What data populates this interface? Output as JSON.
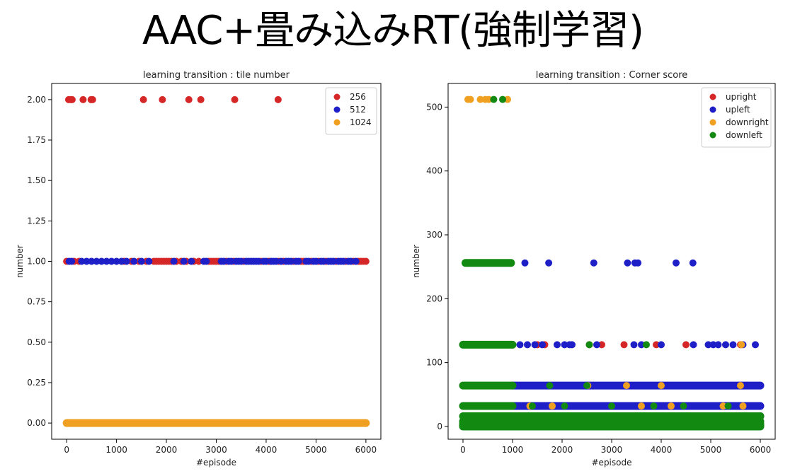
{
  "slide": {
    "title": "AAC+畳み込みRT(強制学習)"
  },
  "chart_data": [
    {
      "type": "scatter",
      "title": "learning transition : tile number",
      "xlabel": "#episode",
      "ylabel": "number",
      "xlim": [
        -300,
        6300
      ],
      "ylim": [
        -0.1,
        2.1
      ],
      "xticks": [
        0,
        1000,
        2000,
        3000,
        4000,
        5000,
        6000
      ],
      "xtick_labels": [
        "0",
        "1000",
        "2000",
        "3000",
        "4000",
        "5000",
        "6000"
      ],
      "yticks": [
        0.0,
        0.25,
        0.5,
        0.75,
        1.0,
        1.25,
        1.5,
        1.75,
        2.0
      ],
      "ytick_labels": [
        "0.00",
        "0.25",
        "0.50",
        "0.75",
        "1.00",
        "1.25",
        "1.50",
        "1.75",
        "2.00"
      ],
      "grid": false,
      "legend_position": "top-right",
      "series": [
        {
          "name": "256",
          "color": "#d62728",
          "points": [
            [
              40,
              2
            ],
            [
              80,
              2
            ],
            [
              110,
              2
            ],
            [
              330,
              2
            ],
            [
              490,
              2
            ],
            [
              520,
              2
            ],
            [
              1540,
              2
            ],
            [
              1920,
              2
            ],
            [
              2450,
              2
            ],
            [
              2690,
              2
            ],
            [
              3370,
              2
            ],
            [
              4240,
              2
            ],
            [
              0,
              1
            ],
            [
              150,
              1
            ],
            [
              250,
              1
            ],
            [
              1150,
              1
            ],
            [
              1300,
              1
            ],
            [
              1450,
              1
            ],
            [
              1600,
              1
            ],
            [
              1750,
              1
            ],
            [
              1800,
              1
            ],
            [
              1850,
              1
            ],
            [
              1900,
              1
            ],
            [
              1950,
              1
            ],
            [
              2000,
              1
            ],
            [
              2050,
              1
            ],
            [
              2100,
              1
            ],
            [
              2200,
              1
            ],
            [
              2300,
              1
            ],
            [
              2400,
              1
            ],
            [
              2550,
              1
            ],
            [
              2650,
              1
            ],
            [
              2850,
              1
            ],
            [
              2900,
              1
            ],
            [
              2950,
              1
            ],
            [
              3000,
              1
            ],
            [
              3050,
              1
            ],
            [
              3200,
              1
            ],
            [
              3350,
              1
            ],
            [
              3550,
              1
            ],
            [
              3900,
              1
            ],
            [
              4050,
              1
            ],
            [
              4250,
              1
            ],
            [
              4350,
              1
            ],
            [
              4550,
              1
            ],
            [
              4700,
              1
            ],
            [
              4750,
              1
            ],
            [
              4900,
              1
            ],
            [
              5050,
              1
            ],
            [
              5200,
              1
            ],
            [
              5400,
              1
            ],
            [
              5600,
              1
            ],
            [
              5750,
              1
            ],
            [
              5850,
              1
            ],
            [
              5900,
              1
            ],
            [
              5950,
              1
            ],
            [
              6000,
              1
            ]
          ]
        },
        {
          "name": "512",
          "color": "#1f1fc8",
          "points": [
            [
              50,
              1
            ],
            [
              100,
              1
            ],
            [
              300,
              1
            ],
            [
              400,
              1
            ],
            [
              500,
              1
            ],
            [
              600,
              1
            ],
            [
              700,
              1
            ],
            [
              800,
              1
            ],
            [
              900,
              1
            ],
            [
              1000,
              1
            ],
            [
              1100,
              1
            ],
            [
              1200,
              1
            ],
            [
              1350,
              1
            ],
            [
              1500,
              1
            ],
            [
              1650,
              1
            ],
            [
              2150,
              1
            ],
            [
              2350,
              1
            ],
            [
              2500,
              1
            ],
            [
              2750,
              1
            ],
            [
              2800,
              1
            ],
            [
              3100,
              1
            ],
            [
              3150,
              1
            ],
            [
              3250,
              1
            ],
            [
              3300,
              1
            ],
            [
              3400,
              1
            ],
            [
              3450,
              1
            ],
            [
              3500,
              1
            ],
            [
              3600,
              1
            ],
            [
              3650,
              1
            ],
            [
              3700,
              1
            ],
            [
              3750,
              1
            ],
            [
              3800,
              1
            ],
            [
              3850,
              1
            ],
            [
              3950,
              1
            ],
            [
              4000,
              1
            ],
            [
              4100,
              1
            ],
            [
              4150,
              1
            ],
            [
              4200,
              1
            ],
            [
              4300,
              1
            ],
            [
              4400,
              1
            ],
            [
              4450,
              1
            ],
            [
              4500,
              1
            ],
            [
              4600,
              1
            ],
            [
              4650,
              1
            ],
            [
              4800,
              1
            ],
            [
              4850,
              1
            ],
            [
              4950,
              1
            ],
            [
              5000,
              1
            ],
            [
              5100,
              1
            ],
            [
              5150,
              1
            ],
            [
              5250,
              1
            ],
            [
              5300,
              1
            ],
            [
              5350,
              1
            ],
            [
              5450,
              1
            ],
            [
              5500,
              1
            ],
            [
              5550,
              1
            ],
            [
              5650,
              1
            ],
            [
              5700,
              1
            ],
            [
              5800,
              1
            ]
          ]
        },
        {
          "name": "1024",
          "color": "#f0a020",
          "points": [
            [
              0,
              0
            ],
            [
              6000,
              0
            ]
          ],
          "continuous": true
        }
      ]
    },
    {
      "type": "scatter",
      "title": "learning transition : Corner score",
      "xlabel": "#episode",
      "ylabel": "number",
      "xlim": [
        -300,
        6300
      ],
      "ylim": [
        -20,
        537
      ],
      "xticks": [
        0,
        1000,
        2000,
        3000,
        4000,
        5000,
        6000
      ],
      "xtick_labels": [
        "0",
        "1000",
        "2000",
        "3000",
        "4000",
        "5000",
        "6000"
      ],
      "yticks": [
        0,
        100,
        200,
        300,
        400,
        500
      ],
      "ytick_labels": [
        "0",
        "100",
        "200",
        "300",
        "400",
        "500"
      ],
      "grid": false,
      "legend_position": "top-right",
      "series": [
        {
          "name": "upright",
          "color": "#d62728",
          "points": [
            [
              0,
              64
            ],
            [
              1050,
              64
            ],
            [
              1500,
              128
            ],
            [
              1650,
              128
            ],
            [
              2550,
              128
            ],
            [
              2800,
              128
            ],
            [
              3250,
              128
            ],
            [
              3900,
              128
            ],
            [
              4500,
              128
            ],
            [
              5600,
              128
            ],
            [
              6000,
              64
            ],
            [
              100,
              4
            ],
            [
              500,
              16
            ],
            [
              1200,
              8
            ],
            [
              2300,
              16
            ],
            [
              3400,
              4
            ],
            [
              4400,
              8
            ],
            [
              5500,
              16
            ],
            [
              6000,
              32
            ]
          ]
        },
        {
          "name": "upleft",
          "color": "#1f1fc8",
          "points": [
            [
              950,
              256
            ],
            [
              1250,
              256
            ],
            [
              1730,
              256
            ],
            [
              2640,
              256
            ],
            [
              3320,
              256
            ],
            [
              3470,
              256
            ],
            [
              3530,
              256
            ],
            [
              4300,
              256
            ],
            [
              4640,
              256
            ],
            [
              1150,
              128
            ],
            [
              1300,
              128
            ],
            [
              1450,
              128
            ],
            [
              1600,
              128
            ],
            [
              1900,
              128
            ],
            [
              2050,
              128
            ],
            [
              2150,
              128
            ],
            [
              2200,
              128
            ],
            [
              2700,
              128
            ],
            [
              3450,
              128
            ],
            [
              3600,
              128
            ],
            [
              4000,
              128
            ],
            [
              4650,
              128
            ],
            [
              4950,
              128
            ],
            [
              5050,
              128
            ],
            [
              5150,
              128
            ],
            [
              5300,
              128
            ],
            [
              5450,
              128
            ],
            [
              5650,
              128
            ],
            [
              5900,
              128
            ],
            [
              0,
              32
            ],
            [
              6000,
              32
            ],
            [
              1100,
              64
            ],
            [
              5950,
              64
            ],
            [
              1500,
              0
            ],
            [
              4500,
              0
            ]
          ],
          "bands": [
            [
              1000,
              6000,
              64
            ],
            [
              950,
              6000,
              32
            ],
            [
              950,
              6000,
              16
            ]
          ]
        },
        {
          "name": "downright",
          "color": "#f0a020",
          "points": [
            [
              100,
              512
            ],
            [
              150,
              512
            ],
            [
              350,
              512
            ],
            [
              450,
              512
            ],
            [
              520,
              512
            ],
            [
              900,
              512
            ],
            [
              5620,
              128
            ],
            [
              2520,
              64
            ],
            [
              3300,
              64
            ],
            [
              4000,
              64
            ],
            [
              5600,
              64
            ],
            [
              800,
              32
            ],
            [
              1350,
              32
            ],
            [
              1800,
              32
            ],
            [
              3600,
              32
            ],
            [
              4200,
              32
            ],
            [
              5250,
              32
            ],
            [
              5650,
              32
            ],
            [
              700,
              16
            ],
            [
              1150,
              16
            ],
            [
              1700,
              16
            ],
            [
              1900,
              16
            ],
            [
              2500,
              16
            ],
            [
              3450,
              16
            ],
            [
              4250,
              16
            ],
            [
              4700,
              16
            ],
            [
              5550,
              16
            ],
            [
              5950,
              16
            ]
          ]
        },
        {
          "name": "downleft",
          "color": "#128a12",
          "points": [
            [
              620,
              512
            ],
            [
              800,
              512
            ],
            [
              720,
              256
            ],
            [
              560,
              256
            ],
            [
              2550,
              128
            ],
            [
              3700,
              128
            ],
            [
              1750,
              64
            ],
            [
              2500,
              64
            ],
            [
              1400,
              32
            ],
            [
              2050,
              32
            ],
            [
              3000,
              32
            ],
            [
              3850,
              32
            ],
            [
              4450,
              32
            ],
            [
              5350,
              32
            ],
            [
              2900,
              16
            ],
            [
              3750,
              16
            ]
          ],
          "bands": [
            [
              50,
              970,
              256
            ],
            [
              0,
              1000,
              128
            ],
            [
              0,
              1000,
              64
            ],
            [
              0,
              1000,
              32
            ],
            [
              0,
              6000,
              16
            ],
            [
              0,
              6000,
              8
            ],
            [
              0,
              6000,
              4
            ],
            [
              0,
              6000,
              2
            ],
            [
              0,
              6000,
              0
            ]
          ]
        }
      ]
    }
  ]
}
